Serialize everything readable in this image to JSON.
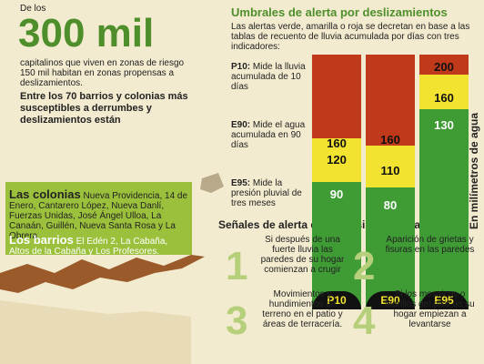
{
  "header": {
    "pre": "De los",
    "big": "300 mil",
    "text": "capitalinos que viven en zonas de riesgo 150 mil habitan en zonas propensas a deslizamientos."
  },
  "subhead": "Entre los 70 barrios y colonias más susceptibles a derrumbes y deslizamientos están",
  "colonias": {
    "title": "Las colonias",
    "list": "Nueva Providencia, 14 de Enero, Cantarero López, Nueva Danlí, Fuerzas Unidas, José Ángel Ulloa, La Canaán, Guillén, Nueva Santa Rosa y La Obrera."
  },
  "barrios": {
    "title": "Los barrios",
    "list": "El Edén 2, La Cabaña, Altos de la Cabaña y Los Profesores."
  },
  "umbrales": {
    "title": "Umbrales de alerta por deslizamientos",
    "intro": "Las alertas verde, amarilla o roja se decretan en base a las tablas de recuento de lluvia acumulada por días con tres indicadores:",
    "indicators": [
      {
        "code": "P10:",
        "desc": "Mide la lluvia acumulada de 10 días"
      },
      {
        "code": "E90:",
        "desc": "Mide el agua acumulada en 90 días"
      },
      {
        "code": "E95:",
        "desc": "Mide la presión pluvial de tres meses"
      }
    ],
    "axis_label": "En milímetros de agua",
    "columns": [
      {
        "name": "P10",
        "red": "160",
        "yellow": "120",
        "green": "90"
      },
      {
        "name": "E90",
        "red": "160",
        "yellow": "110",
        "green": "80"
      },
      {
        "name": "E95",
        "red": "200",
        "yellow": "160",
        "green": "130"
      }
    ]
  },
  "senales": {
    "title": "Señales de alerta de un posible deslizamiento:",
    "items": [
      {
        "n": "1",
        "text": "Si después de una fuerte lluvia las paredes de su hogar comienzan a crugir"
      },
      {
        "n": "2",
        "text": "Aparición de grietas y fisuras en las paredes"
      },
      {
        "n": "3",
        "text": "Movimientos y hundimientos de terreno en el patio y áreas de terracería."
      },
      {
        "n": "4",
        "text": "Si los mosaicos o ladrillos del piso de su hogar empiezan a levantarse"
      }
    ]
  }
}
